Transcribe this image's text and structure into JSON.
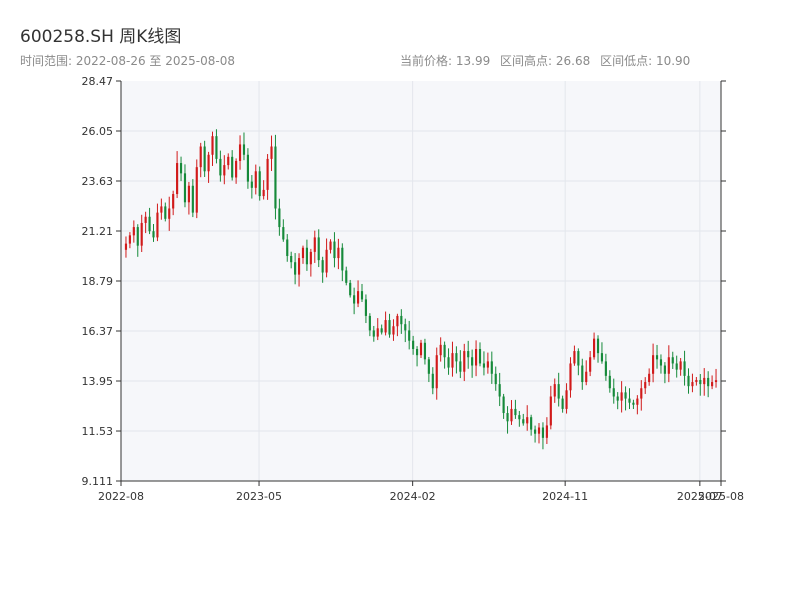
{
  "header": {
    "title": "600258.SH 周K线图",
    "subtitle": "时间范围: 2022-08-26 至 2025-08-08",
    "current_price": "当前价格: 13.99",
    "range_high": "区间高点: 26.68",
    "range_low": "区间低点: 10.90"
  },
  "colors": {
    "up": "#d11a1a",
    "down": "#168a3a",
    "plot_bg": "#f6f7fa",
    "grid": "#e3e6ec",
    "axis": "#333333",
    "text": "#333333"
  },
  "chart_data": {
    "type": "candlestick",
    "title": "",
    "xlabel": "",
    "ylabel": "",
    "ylim": [
      9.111,
      28.47
    ],
    "yticks": [
      "9.111",
      "11.53",
      "13.95",
      "16.37",
      "18.79",
      "21.21",
      "23.63",
      "26.05",
      "28.47"
    ],
    "xticks": [
      {
        "label": "2022-08",
        "date": "2022-08-26"
      },
      {
        "label": "2023-05",
        "date": "2023-05-01"
      },
      {
        "label": "2024-02",
        "date": "2024-02-01"
      },
      {
        "label": "2024-11",
        "date": "2024-11-01"
      },
      {
        "label": "2025-07",
        "date": "2025-07-01"
      },
      {
        "label": "2025-08",
        "date": "2025-08-08"
      }
    ],
    "start_date": "2022-08-26",
    "end_date": "2025-08-08",
    "close": [
      20.6,
      21.0,
      21.4,
      20.5,
      21.6,
      21.9,
      21.2,
      20.9,
      22.1,
      22.4,
      21.8,
      22.3,
      23.0,
      24.5,
      24.0,
      22.6,
      23.4,
      22.1,
      24.3,
      25.3,
      24.1,
      24.9,
      25.8,
      24.7,
      23.9,
      24.4,
      24.8,
      23.8,
      24.6,
      25.4,
      24.9,
      23.6,
      23.3,
      24.1,
      22.9,
      23.2,
      24.7,
      25.3,
      22.3,
      21.4,
      20.8,
      20.0,
      19.7,
      19.1,
      19.9,
      20.4,
      19.6,
      20.2,
      20.9,
      19.8,
      19.2,
      20.3,
      20.7,
      19.9,
      20.4,
      19.3,
      18.7,
      18.1,
      17.7,
      18.3,
      17.9,
      17.1,
      16.4,
      16.1,
      16.5,
      16.3,
      16.9,
      16.2,
      16.6,
      17.1,
      16.7,
      16.4,
      15.9,
      15.5,
      15.2,
      15.8,
      15.0,
      14.3,
      13.6,
      15.2,
      15.7,
      15.1,
      14.6,
      15.3,
      14.9,
      14.4,
      15.4,
      15.1,
      14.7,
      15.5,
      14.8,
      14.6,
      14.9,
      14.3,
      13.8,
      13.2,
      12.4,
      12.0,
      12.6,
      12.3,
      12.1,
      11.9,
      12.2,
      11.6,
      11.4,
      11.7,
      11.2,
      11.8,
      13.2,
      13.8,
      13.1,
      12.6,
      13.5,
      14.8,
      15.4,
      14.7,
      13.9,
      14.4,
      15.1,
      16.0,
      15.3,
      14.9,
      14.2,
      13.6,
      13.2,
      13.0,
      13.4,
      13.1,
      12.9,
      12.8,
      13.1,
      13.6,
      13.9,
      14.3,
      15.2,
      15.0,
      14.7,
      14.3,
      15.1,
      14.8,
      14.5,
      14.9,
      14.2,
      13.7,
      13.9,
      14.0,
      13.8,
      14.1,
      13.7,
      13.9,
      13.99
    ]
  }
}
